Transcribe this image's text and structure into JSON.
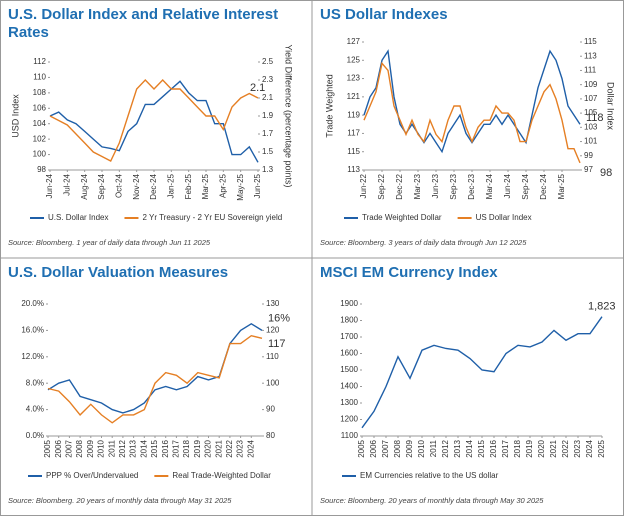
{
  "chart_data": [
    {
      "type": "line",
      "title": "U.S. Dollar Index and Relative Interest Rates",
      "ylabel": "USD Index",
      "y2label": "Yield Difference (percentage points)",
      "categories": [
        "Jun-24",
        null,
        "Jul-24",
        null,
        "Aug-24",
        null,
        "Sep-24",
        null,
        "Oct-24",
        null,
        "Nov-24",
        null,
        "Dec-24",
        null,
        "Jan-25",
        null,
        "Feb-25",
        null,
        "Mar-25",
        null,
        "Apr-25",
        null,
        "May-25",
        null,
        "Jun-25"
      ],
      "series": [
        {
          "name": "U.S. Dollar Index",
          "color": "#1f5fa8",
          "values": [
            105,
            105.5,
            104.5,
            104,
            103,
            102,
            101,
            100.8,
            100.5,
            103,
            104,
            106.5,
            106.5,
            107.5,
            108.5,
            109.5,
            108,
            107,
            107,
            104,
            104,
            100,
            100,
            101,
            99
          ]
        },
        {
          "name": "2 Yr Treasury - 2 Yr EU Sovereign yield",
          "color": "#e57f24",
          "axis": "y2",
          "values": [
            1.9,
            1.85,
            1.8,
            1.7,
            1.6,
            1.5,
            1.45,
            1.4,
            1.6,
            1.9,
            2.2,
            2.3,
            2.2,
            2.3,
            2.2,
            2.2,
            2.1,
            2.0,
            1.9,
            1.9,
            1.75,
            2.0,
            2.1,
            2.15,
            2.1
          ]
        }
      ],
      "ylim": [
        98,
        112
      ],
      "yticks": [
        98,
        100,
        102,
        104,
        106,
        108,
        110,
        112
      ],
      "y2lim": [
        1.3,
        2.5
      ],
      "y2ticks": [
        1.3,
        1.5,
        1.7,
        1.9,
        2.1,
        2.3,
        2.5
      ],
      "grid": false,
      "annotations": [
        {
          "text": "2.1",
          "color": "#e57f24"
        }
      ],
      "source": "Source: Bloomberg. 1 year of daily data through Jun 11 2025"
    },
    {
      "type": "line",
      "title": "US Dollar Indexes",
      "ylabel": "Trade Weighted",
      "y2label": "Dollar Index",
      "categories": [
        "Jun-22",
        null,
        null,
        "Sep-22",
        null,
        null,
        "Dec-22",
        null,
        null,
        "Mar-23",
        null,
        null,
        "Jun-23",
        null,
        null,
        "Sep-23",
        null,
        null,
        "Dec-23",
        null,
        null,
        "Mar-24",
        null,
        null,
        "Jun-24",
        null,
        null,
        "Sep-24",
        null,
        null,
        "Dec-24",
        null,
        null,
        "Mar-25",
        null,
        null,
        null
      ],
      "series": [
        {
          "name": "Trade Weighted Dollar",
          "color": "#1f5fa8",
          "values": [
            119,
            121,
            122,
            125,
            126,
            121,
            118,
            117,
            118,
            117,
            116,
            117,
            116,
            115,
            117,
            118,
            119,
            117,
            116,
            117,
            118,
            118,
            119,
            118,
            119,
            118,
            117,
            116,
            119,
            122,
            124,
            126,
            125,
            123,
            120,
            119,
            118
          ]
        },
        {
          "name": "US Dollar Index",
          "color": "#e57f24",
          "axis": "y2",
          "values": [
            104,
            106,
            108,
            112,
            111,
            106,
            104,
            102,
            104,
            102,
            101,
            104,
            102,
            101,
            104,
            106,
            106,
            103,
            101,
            103,
            104,
            104,
            106,
            105,
            105,
            104,
            101,
            101,
            104,
            106,
            108,
            109,
            107,
            104,
            100,
            100,
            98
          ]
        }
      ],
      "ylim": [
        113,
        127
      ],
      "yticks": [
        113,
        115,
        117,
        119,
        121,
        123,
        125,
        127
      ],
      "y2lim": [
        97,
        115
      ],
      "y2ticks": [
        97,
        99,
        101,
        103,
        105,
        107,
        109,
        111,
        113,
        115
      ],
      "grid": false,
      "annotations": [
        {
          "text": "118",
          "color": "#1f5fa8"
        },
        {
          "text": "98",
          "color": "#e57f24"
        }
      ],
      "source": "Source: Bloomberg. 3 years of daily data through Jun 12 2025"
    },
    {
      "type": "line",
      "title": "U.S. Dollar Valuation Measures",
      "categories": [
        "2005",
        "2006",
        "2007",
        "2008",
        "2009",
        "2010",
        "2011",
        "2012",
        "2013",
        "2014",
        "2015",
        "2016",
        "2017",
        "2018",
        "2019",
        "2020",
        "2021",
        "2022",
        "2023",
        "2024",
        null
      ],
      "series": [
        {
          "name": "PPP % Over/Undervalued",
          "color": "#1f5fa8",
          "values": [
            7,
            8,
            8.5,
            6,
            5.5,
            5,
            4,
            3.5,
            4,
            5,
            7,
            7.5,
            7,
            7.5,
            9,
            8.5,
            9,
            14,
            16,
            17,
            16
          ]
        },
        {
          "name": "Real Trade-Weighted Dollar",
          "color": "#e57f24",
          "axis": "y2",
          "values": [
            98,
            97,
            93,
            88,
            92,
            88,
            85,
            88,
            88,
            90,
            100,
            104,
            103,
            100,
            104,
            103,
            102,
            115,
            115,
            118,
            117
          ]
        }
      ],
      "ylim": [
        0,
        20
      ],
      "yticks": [
        {
          "value": 0,
          "label": "0.0%"
        },
        {
          "value": 4,
          "label": "4.0%"
        },
        {
          "value": 8,
          "label": "8.0%"
        },
        {
          "value": 12,
          "label": "12.0%"
        },
        {
          "value": 16,
          "label": "16.0%"
        },
        {
          "value": 20,
          "label": "20.0%"
        }
      ],
      "y2lim": [
        80,
        130
      ],
      "y2ticks": [
        80,
        90,
        100,
        110,
        120,
        130
      ],
      "grid": false,
      "annotations": [
        {
          "text": "16%",
          "color": "#1f5fa8"
        },
        {
          "text": "117",
          "color": "#e57f24"
        }
      ],
      "source": "Source: Bloomberg. 20 years of monthly data through May 31 2025"
    },
    {
      "type": "line",
      "title": "MSCI EM Currency Index",
      "categories": [
        "2005",
        "2006",
        "2007",
        "2008",
        "2009",
        "2010",
        "2011",
        "2012",
        "2013",
        "2014",
        "2015",
        "2016",
        "2017",
        "2018",
        "2019",
        "2020",
        "2021",
        "2022",
        "2023",
        "2024",
        "2025"
      ],
      "series": [
        {
          "name": "EM Currencies relative to the US dollar",
          "color": "#1f5fa8",
          "values": [
            1150,
            1250,
            1400,
            1580,
            1450,
            1620,
            1650,
            1630,
            1620,
            1570,
            1500,
            1490,
            1600,
            1650,
            1640,
            1670,
            1740,
            1680,
            1720,
            1720,
            1823
          ]
        }
      ],
      "ylim": [
        1100,
        1900
      ],
      "yticks": [
        1100,
        1200,
        1300,
        1400,
        1500,
        1600,
        1700,
        1800,
        1900
      ],
      "grid": false,
      "annotations": [
        {
          "text": "1,823",
          "color": "#1f5fa8"
        }
      ],
      "source": "Source: Bloomberg. 20 years of monthly data through May 30 2025"
    }
  ]
}
